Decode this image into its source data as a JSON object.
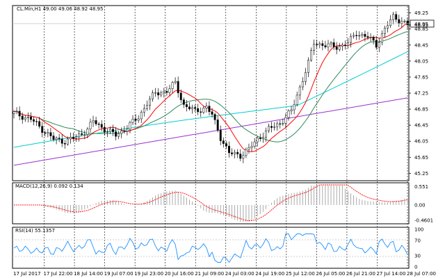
{
  "header": {
    "title": "CL.Mín,H1 49.00 49.06 48.92 48.95"
  },
  "price_tags": {
    "current": "48.95"
  },
  "panels": {
    "macd_label": "MACD(12,26,9) 0.092 0.134",
    "rsi_label": "RSI(14) 55.1357"
  },
  "chart_data": [
    {
      "type": "candlestick",
      "title": "CL.Mín,H1 49.00 49.06 48.92 48.95",
      "y_ticks": [
        "49.25",
        "48.95",
        "48.85",
        "48.45",
        "48.05",
        "47.65",
        "47.25",
        "46.85",
        "46.45",
        "46.05",
        "45.65",
        "45.25"
      ],
      "ylim": [
        45.1,
        49.4
      ],
      "x_ticks": [
        "17 Jul 2017",
        "17 Jul 22:00",
        "18 Jul 14:00",
        "19 Jul 07:00",
        "19 Jul 23:00",
        "20 Jul 16:00",
        "21 Jul 09:00",
        "24 Jul 03:00",
        "24 Jul 19:00",
        "25 Jul 12:00",
        "26 Jul 05:00",
        "26 Jul 21:00",
        "27 Jul 14:00",
        "28 Jul 07:00"
      ],
      "close_path": [
        [
          0,
          46.75
        ],
        [
          6,
          46.6
        ],
        [
          10,
          46.35
        ],
        [
          14,
          46.1
        ],
        [
          18,
          46.05
        ],
        [
          22,
          46.15
        ],
        [
          26,
          46.35
        ],
        [
          28,
          46.55
        ],
        [
          32,
          46.35
        ],
        [
          36,
          46.2
        ],
        [
          40,
          46.4
        ],
        [
          44,
          46.65
        ],
        [
          47,
          47.0
        ],
        [
          50,
          47.25
        ],
        [
          54,
          47.3
        ],
        [
          57,
          47.5
        ],
        [
          60,
          46.95
        ],
        [
          64,
          46.8
        ],
        [
          68,
          46.9
        ],
        [
          70,
          46.7
        ],
        [
          73,
          46.15
        ],
        [
          76,
          45.75
        ],
        [
          80,
          45.7
        ],
        [
          83,
          45.85
        ],
        [
          86,
          46.1
        ],
        [
          90,
          46.35
        ],
        [
          94,
          46.5
        ],
        [
          98,
          46.8
        ],
        [
          101,
          47.4
        ],
        [
          104,
          48.0
        ],
        [
          106,
          48.5
        ],
        [
          110,
          48.45
        ],
        [
          114,
          48.4
        ],
        [
          118,
          48.5
        ],
        [
          121,
          48.75
        ],
        [
          125,
          48.65
        ],
        [
          128,
          48.45
        ],
        [
          131,
          48.85
        ],
        [
          134,
          49.15
        ],
        [
          137,
          49.05
        ],
        [
          139,
          48.95
        ]
      ]
    },
    {
      "type": "bar",
      "title": "MACD(12,26,9) 0.092 0.134",
      "y_ticks": [
        "0.551",
        "0.00",
        "-0.4601"
      ],
      "ylim": [
        -0.52,
        0.6
      ]
    },
    {
      "type": "line",
      "title": "RSI(14) 55.1357",
      "y_ticks": [
        "100",
        "70",
        "30",
        "0"
      ],
      "ylim": [
        0,
        100
      ]
    }
  ]
}
